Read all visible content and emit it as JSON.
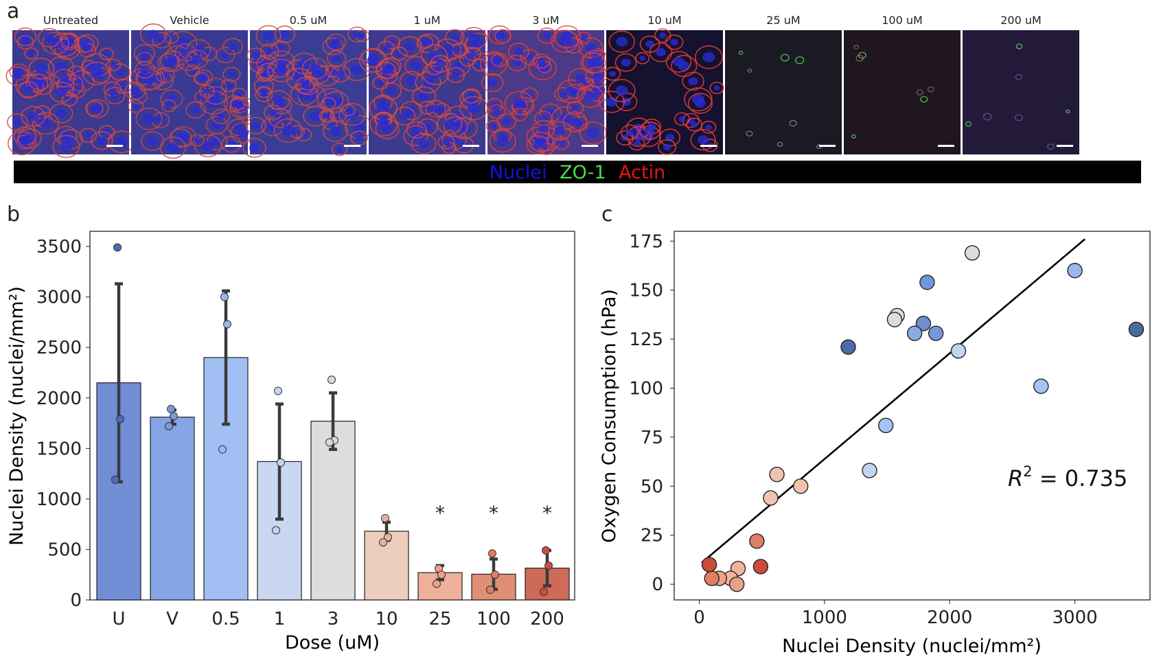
{
  "panel_letters": {
    "a": "a",
    "b": "b",
    "c": "c"
  },
  "microscopy": {
    "conditions": [
      {
        "label": "Untreated",
        "tone": "#3c3a8e",
        "membrane": "#d84848",
        "junction": "#8fd98a",
        "fill": 1.0
      },
      {
        "label": "Vehicle",
        "tone": "#3a3a92",
        "membrane": "#c84a4a",
        "junction": "#8fd98a",
        "fill": 1.0
      },
      {
        "label": "0.5 uM",
        "tone": "#3b3d94",
        "membrane": "#cf4b4b",
        "junction": "#88d486",
        "fill": 1.0
      },
      {
        "label": "1 uM",
        "tone": "#3e3a8c",
        "membrane": "#e04646",
        "junction": "#7ccf7c",
        "fill": 1.0
      },
      {
        "label": "3 uM",
        "tone": "#4a3a88",
        "membrane": "#e44040",
        "junction": "#7ccf7c",
        "fill": 0.95
      },
      {
        "label": "10 uM",
        "tone": "#14122e",
        "membrane": "#f03c3c",
        "junction": "#7ccf7c",
        "fill": 0.55
      },
      {
        "label": "25 uM",
        "tone": "#1b1a24",
        "membrane": "#9a8aa8",
        "junction": "#5fe05f",
        "fill": 0.08
      },
      {
        "label": "100 uM",
        "tone": "#1f1620",
        "membrane": "#a26070",
        "junction": "#5fe05f",
        "fill": 0.06
      },
      {
        "label": "200 uM",
        "tone": "#221a38",
        "membrane": "#6a5aa8",
        "junction": "#5fe05f",
        "fill": 0.05
      }
    ],
    "legend": {
      "nuclei": {
        "text": "Nuclei",
        "color": "#1414e0"
      },
      "zo1": {
        "text": "ZO-1",
        "color": "#4cdc4c"
      },
      "actin": {
        "text": "Actin",
        "color": "#e81414"
      }
    }
  },
  "chart_data": [
    {
      "id": "b",
      "type": "bar",
      "xlabel": "Dose (uM)",
      "ylabel": "Nuclei Density (nuclei/mm²)",
      "ylim": [
        0,
        3650
      ],
      "yticks": [
        0,
        500,
        1000,
        1500,
        2000,
        2500,
        3000,
        3500
      ],
      "grid": false,
      "categories": [
        "U",
        "V",
        "0.5",
        "1",
        "3",
        "10",
        "25",
        "100",
        "200"
      ],
      "values": [
        2150,
        1810,
        2400,
        1370,
        1770,
        680,
        270,
        255,
        315
      ],
      "error": [
        980,
        70,
        660,
        570,
        280,
        90,
        70,
        150,
        175
      ],
      "points": [
        [
          3490,
          1790,
          1190
        ],
        [
          1890,
          1820,
          1720
        ],
        [
          3000,
          2730,
          1490
        ],
        [
          2070,
          1360,
          690
        ],
        [
          2180,
          1580,
          1560
        ],
        [
          810,
          620,
          570
        ],
        [
          310,
          250,
          160
        ],
        [
          460,
          250,
          100
        ],
        [
          490,
          340,
          80
        ]
      ],
      "significance": [
        "",
        "",
        "",
        "",
        "",
        "",
        "*",
        "*",
        "*"
      ],
      "bar_colors": [
        "#6f8ed6",
        "#86a5e6",
        "#a1bff3",
        "#c9d8f0",
        "#dddddd",
        "#edcdbd",
        "#eeb09a",
        "#df8f76",
        "#cd6a58"
      ],
      "point_colors": [
        "#4c6bb8",
        "#7a99dc",
        "#9ab8ee",
        "#c3d4f1",
        "#d9d9d9",
        "#eab39d",
        "#f0a088",
        "#e07e62",
        "#c8503e"
      ]
    },
    {
      "id": "c",
      "type": "scatter",
      "xlabel": "Nuclei Density (nuclei/mm²)",
      "ylabel": "Oxygen Consumption (hPa)",
      "xlim": [
        -200,
        3600
      ],
      "ylim": [
        -8,
        180
      ],
      "xticks": [
        0,
        1000,
        2000,
        3000
      ],
      "yticks": [
        0,
        25,
        50,
        75,
        100,
        125,
        150,
        175
      ],
      "grid": false,
      "annotation": {
        "r2_symbol": "R",
        "exponent": "2",
        "value_text": " = 0.735"
      },
      "fit_line": {
        "x": [
          20,
          3080
        ],
        "y": [
          11,
          176
        ]
      },
      "points": [
        {
          "x": 3490,
          "y": 130,
          "color": "#4c6b9d"
        },
        {
          "x": 1190,
          "y": 121,
          "color": "#4f6aa6"
        },
        {
          "x": 1790,
          "y": 133,
          "color": "#6f8fcc"
        },
        {
          "x": 1820,
          "y": 154,
          "color": "#7497dc"
        },
        {
          "x": 1890,
          "y": 128,
          "color": "#7497dc"
        },
        {
          "x": 1720,
          "y": 128,
          "color": "#8aaae6"
        },
        {
          "x": 3000,
          "y": 160,
          "color": "#9ab8ee"
        },
        {
          "x": 2730,
          "y": 101,
          "color": "#a4c2f2"
        },
        {
          "x": 1490,
          "y": 81,
          "color": "#a4c2f2"
        },
        {
          "x": 2070,
          "y": 119,
          "color": "#c3d4f1"
        },
        {
          "x": 1360,
          "y": 58,
          "color": "#c3d4f1"
        },
        {
          "x": 2180,
          "y": 169,
          "color": "#dcdcdc"
        },
        {
          "x": 1580,
          "y": 137,
          "color": "#dcdcdc"
        },
        {
          "x": 1560,
          "y": 135,
          "color": "#dcdcdc"
        },
        {
          "x": 620,
          "y": 56,
          "color": "#f0c4b0"
        },
        {
          "x": 810,
          "y": 50,
          "color": "#f0c4b0"
        },
        {
          "x": 570,
          "y": 44,
          "color": "#f0c4b0"
        },
        {
          "x": 310,
          "y": 8,
          "color": "#f2b49a"
        },
        {
          "x": 250,
          "y": 3,
          "color": "#f2b49a"
        },
        {
          "x": 160,
          "y": 3,
          "color": "#eea586"
        },
        {
          "x": 460,
          "y": 22,
          "color": "#e07e62"
        },
        {
          "x": 100,
          "y": 3,
          "color": "#e07e62"
        },
        {
          "x": 300,
          "y": 0,
          "color": "#e8a088"
        },
        {
          "x": 490,
          "y": 9,
          "color": "#cc4a3a"
        },
        {
          "x": 80,
          "y": 10,
          "color": "#cc4a3a"
        }
      ]
    }
  ]
}
